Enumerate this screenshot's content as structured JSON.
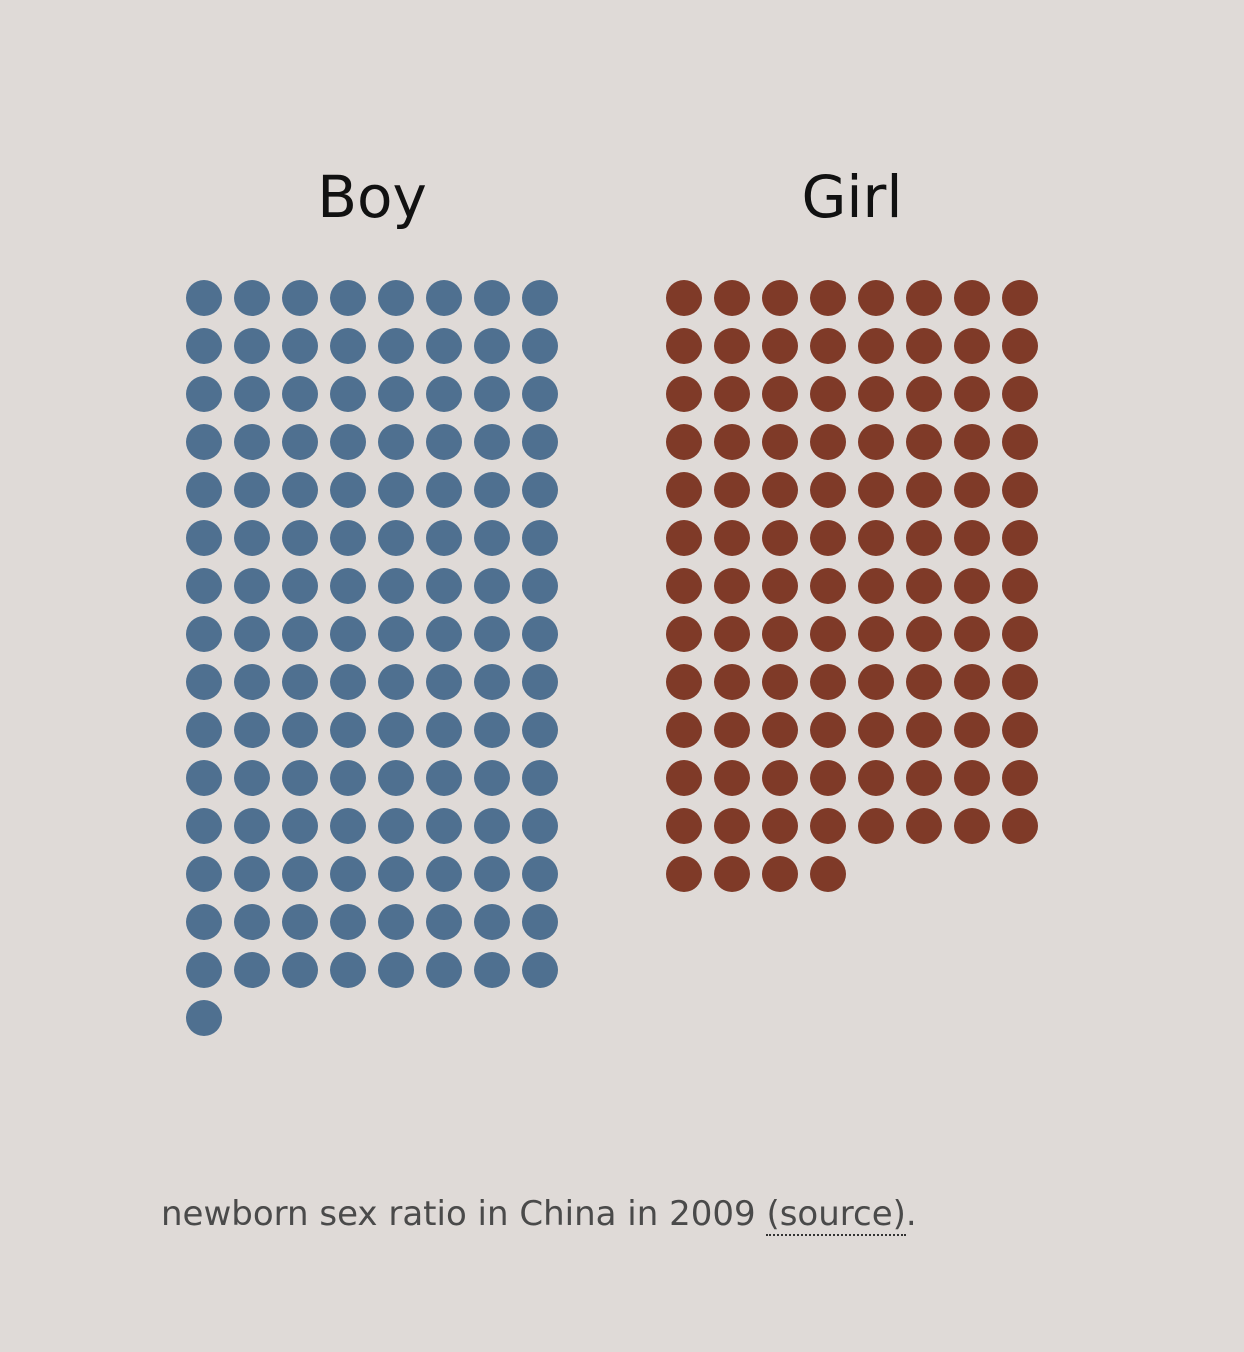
{
  "chart_data": {
    "type": "unit",
    "title": "",
    "unit": "1 dot per newborn",
    "categories": [
      "Boy",
      "Girl"
    ],
    "values": [
      121,
      100
    ],
    "columns_per_group": 8,
    "colors": {
      "Boy": "#4f7090",
      "Girl": "#7f3a28"
    }
  },
  "caption": {
    "text": "newborn sex ratio in China in 2009 ",
    "link_label": "(source)",
    "end": "."
  }
}
